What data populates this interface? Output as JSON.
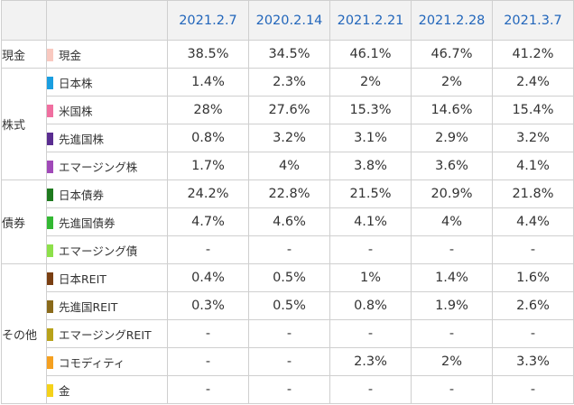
{
  "dates": [
    "2021.2.7",
    "2020.2.14",
    "2021.2.21",
    "2021.2.28",
    "2021.3.7"
  ],
  "groups": [
    {
      "label": "現金",
      "rows": [
        {
          "asset": "現金",
          "color": "#f9c9c0",
          "values": [
            "38.5%",
            "34.5%",
            "46.1%",
            "46.7%",
            "41.2%"
          ]
        }
      ]
    },
    {
      "label": "株式",
      "rows": [
        {
          "asset": "日本株",
          "color": "#1a9ee0",
          "values": [
            "1.4%",
            "2.3%",
            "2%",
            "2%",
            "2.4%"
          ]
        },
        {
          "asset": "米国株",
          "color": "#f06fa0",
          "values": [
            "28%",
            "27.6%",
            "15.3%",
            "14.6%",
            "15.4%"
          ]
        },
        {
          "asset": "先進国株",
          "color": "#5a2d91",
          "values": [
            "0.8%",
            "3.2%",
            "3.1%",
            "2.9%",
            "3.2%"
          ]
        },
        {
          "asset": "エマージング株",
          "color": "#a049b8",
          "values": [
            "1.7%",
            "4%",
            "3.8%",
            "3.6%",
            "4.1%"
          ]
        }
      ]
    },
    {
      "label": "債券",
      "rows": [
        {
          "asset": "日本債券",
          "color": "#1e7a1e",
          "values": [
            "24.2%",
            "22.8%",
            "21.5%",
            "20.9%",
            "21.8%"
          ]
        },
        {
          "asset": "先進国債券",
          "color": "#33b833",
          "values": [
            "4.7%",
            "4.6%",
            "4.1%",
            "4%",
            "4.4%"
          ]
        },
        {
          "asset": "エマージング債",
          "color": "#8de04a",
          "values": [
            "-",
            "-",
            "-",
            "-",
            "-"
          ]
        }
      ]
    },
    {
      "label": "その他",
      "rows": [
        {
          "asset": "日本REIT",
          "color": "#7a3f12",
          "values": [
            "0.4%",
            "0.5%",
            "1%",
            "1.4%",
            "1.6%"
          ]
        },
        {
          "asset": "先進国REIT",
          "color": "#8a6a1a",
          "values": [
            "0.3%",
            "0.5%",
            "0.8%",
            "1.9%",
            "2.6%"
          ]
        },
        {
          "asset": "エマージングREIT",
          "color": "#b8a21a",
          "values": [
            "-",
            "-",
            "-",
            "-",
            "-"
          ]
        },
        {
          "asset": "コモディティ",
          "color": "#f5a020",
          "values": [
            "-",
            "-",
            "2.3%",
            "2%",
            "3.3%"
          ]
        },
        {
          "asset": "金",
          "color": "#f5d21a",
          "values": [
            "-",
            "-",
            "-",
            "-",
            "-"
          ]
        }
      ]
    }
  ]
}
